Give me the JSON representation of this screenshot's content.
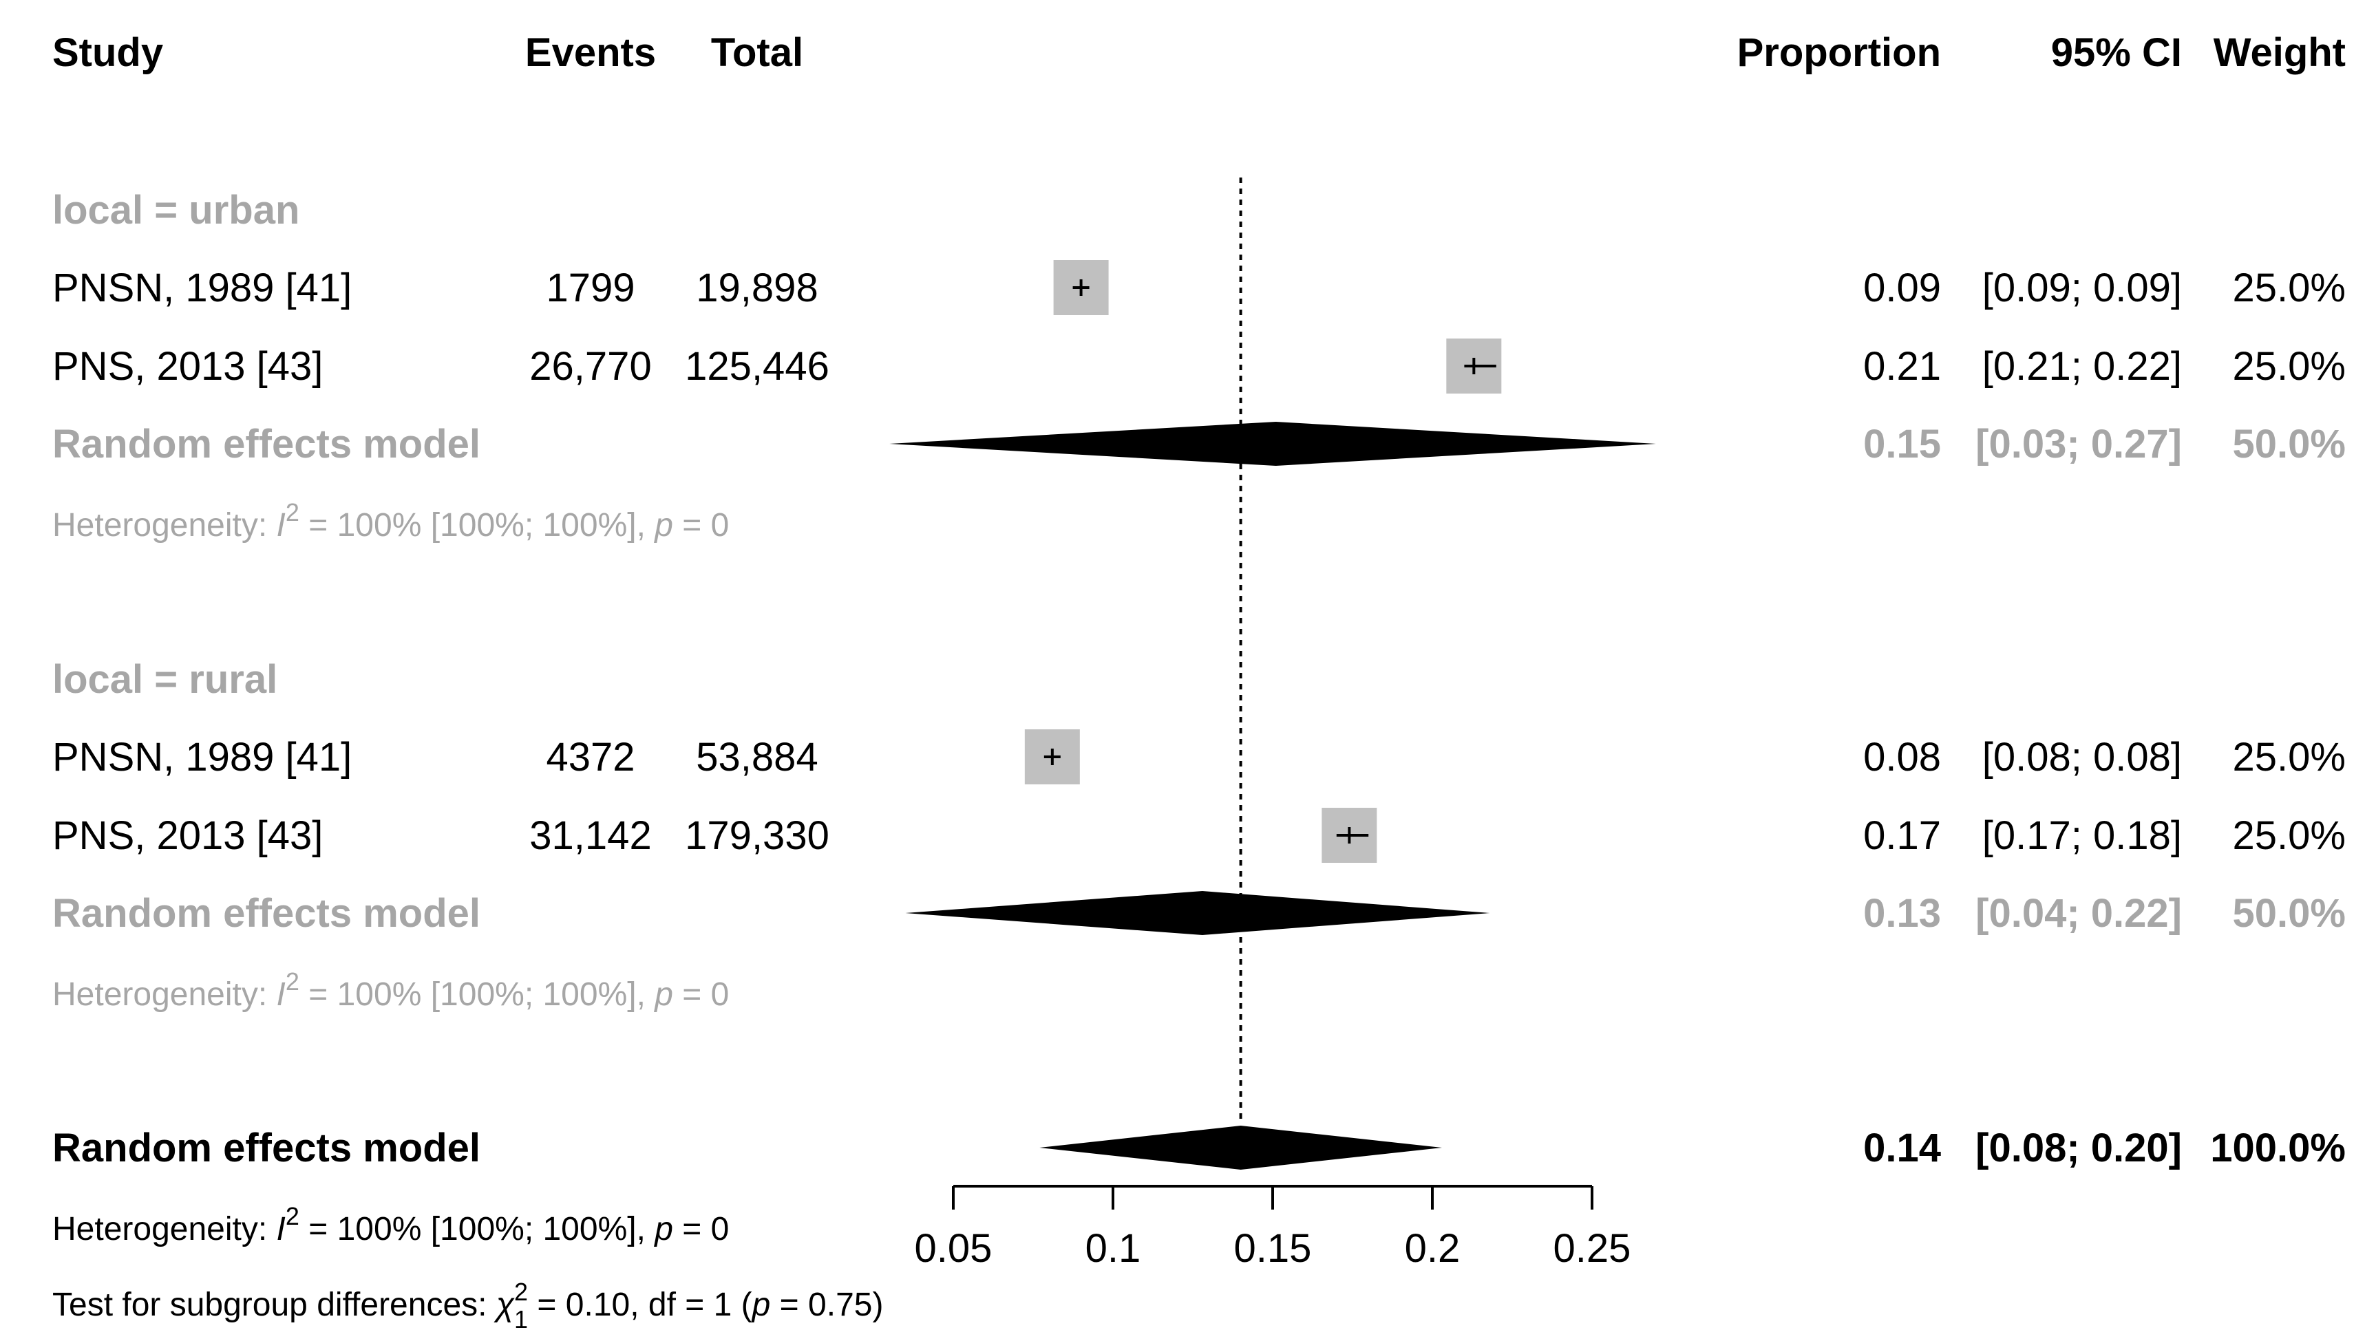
{
  "headers": {
    "study": "Study",
    "events": "Events",
    "total": "Total",
    "proportion": "Proportion",
    "ci": "95% CI",
    "weight": "Weight"
  },
  "colors": {
    "text": "#000000",
    "subgroup": "#a6a6a6",
    "box": "#c0c0c0",
    "diamond": "#000000"
  },
  "chart_data": {
    "type": "forest",
    "xlim": [
      0.05,
      0.25
    ],
    "ticks": [
      0.05,
      0.1,
      0.15,
      0.2,
      0.25
    ],
    "tick_labels": [
      "0.05",
      "0.1",
      "0.15",
      "0.2",
      "0.25"
    ],
    "reference_line": 0.14,
    "groups": [
      {
        "label": "local = urban",
        "studies": [
          {
            "study": "PNSN, 1989 [41]",
            "events": "1799",
            "total": "19,898",
            "est": 0.09,
            "lo": 0.09,
            "hi": 0.09,
            "prop": "0.09",
            "ci": "[0.09; 0.09]",
            "weight": "25.0%"
          },
          {
            "study": "PNS, 2013 [43]",
            "events": "26,770",
            "total": "125,446",
            "est": 0.213,
            "lo": 0.21,
            "hi": 0.22,
            "prop": "0.21",
            "ci": "[0.21; 0.22]",
            "weight": "25.0%"
          }
        ],
        "model": {
          "label": "Random effects model",
          "est": 0.151,
          "lo": 0.03,
          "hi": 0.27,
          "prop": "0.15",
          "ci": "[0.03; 0.27]",
          "weight": "50.0%"
        },
        "heterogeneity": {
          "prefix": "Heterogeneity: ",
          "i": "I",
          "sup": "2",
          "mid": " = 100% [100%; 100%], ",
          "p": "p",
          "end": " = 0"
        }
      },
      {
        "label": "local = rural",
        "studies": [
          {
            "study": "PNSN, 1989 [41]",
            "events": "4372",
            "total": "53,884",
            "est": 0.081,
            "lo": 0.08,
            "hi": 0.08,
            "prop": "0.08",
            "ci": "[0.08; 0.08]",
            "weight": "25.0%"
          },
          {
            "study": "PNS, 2013 [43]",
            "events": "31,142",
            "total": "179,330",
            "est": 0.174,
            "lo": 0.17,
            "hi": 0.18,
            "prop": "0.17",
            "ci": "[0.17; 0.18]",
            "weight": "25.0%"
          }
        ],
        "model": {
          "label": "Random effects model",
          "est": 0.128,
          "lo": 0.035,
          "hi": 0.218,
          "prop": "0.13",
          "ci": "[0.04; 0.22]",
          "weight": "50.0%"
        },
        "heterogeneity": {
          "prefix": "Heterogeneity: ",
          "i": "I",
          "sup": "2",
          "mid": " = 100% [100%; 100%], ",
          "p": "p",
          "end": " = 0"
        }
      }
    ],
    "overall": {
      "label": "Random effects model",
      "est": 0.14,
      "lo": 0.077,
      "hi": 0.203,
      "prop": "0.14",
      "ci": "[0.08; 0.20]",
      "weight": "100.0%",
      "heterogeneity": {
        "prefix": "Heterogeneity: ",
        "i": "I",
        "sup": "2",
        "mid": " = 100% [100%; 100%], ",
        "p": "p",
        "end": " = 0"
      },
      "subgroup_test": {
        "prefix": "Test for subgroup differences: ",
        "chi": "χ",
        "sup": "2",
        "sub": "1",
        "mid": " = 0.10, df = 1 (",
        "p": "p",
        "end": " = 0.75)"
      }
    }
  }
}
